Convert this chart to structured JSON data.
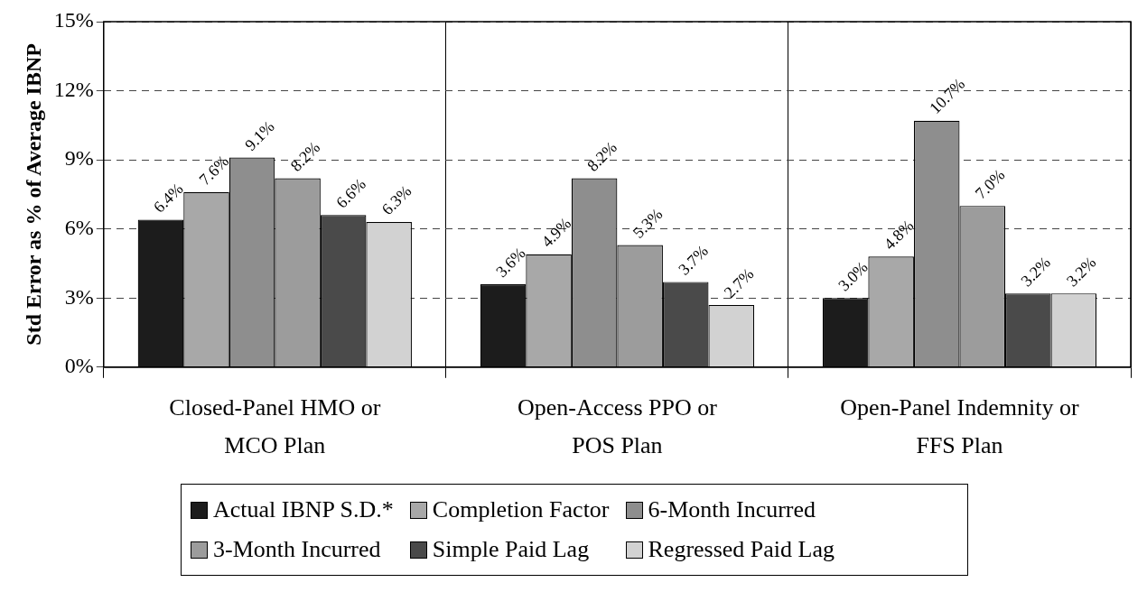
{
  "chart_data": {
    "type": "bar",
    "ylabel": "Std Error as % of Average IBNP",
    "categories": [
      "Closed-Panel HMO or MCO Plan",
      "Open-Access PPO or POS Plan",
      "Open-Panel Indemnity or FFS Plan"
    ],
    "series": [
      {
        "name": "Actual IBNP S.D.*",
        "color": "#1c1c1c",
        "values": [
          6.4,
          3.6,
          3.0
        ],
        "value_labels": [
          "6.4%",
          "3.6%",
          "3.0%"
        ]
      },
      {
        "name": "Completion Factor",
        "color": "#a8a8a8",
        "values": [
          7.6,
          4.9,
          4.8
        ],
        "value_labels": [
          "7.6%",
          "4.9%",
          "4.8%"
        ]
      },
      {
        "name": "6-Month Incurred",
        "color": "#8e8e8e",
        "values": [
          9.1,
          8.2,
          10.7
        ],
        "value_labels": [
          "9.1%",
          "8.2%",
          "10.7%"
        ]
      },
      {
        "name": "3-Month Incurred",
        "color": "#9c9c9c",
        "values": [
          8.2,
          5.3,
          7.0
        ],
        "value_labels": [
          "8.2%",
          "5.3%",
          "7.0%"
        ]
      },
      {
        "name": "Simple Paid Lag",
        "color": "#4a4a4a",
        "values": [
          6.6,
          3.7,
          3.2
        ],
        "value_labels": [
          "6.6%",
          "3.7%",
          "3.2%"
        ]
      },
      {
        "name": "Regressed Paid Lag",
        "color": "#d2d2d2",
        "values": [
          6.3,
          2.7,
          3.2
        ],
        "value_labels": [
          "6.3%",
          "2.7%",
          "3.2%"
        ]
      }
    ],
    "ylim": [
      0,
      15
    ],
    "yticks": [
      {
        "value": 0,
        "label": "0%"
      },
      {
        "value": 3,
        "label": "3%"
      },
      {
        "value": 6,
        "label": "6%"
      },
      {
        "value": 9,
        "label": "9%"
      },
      {
        "value": 12,
        "label": "12%"
      },
      {
        "value": 15,
        "label": "15%"
      }
    ],
    "grid": true,
    "legend": "bottom"
  }
}
